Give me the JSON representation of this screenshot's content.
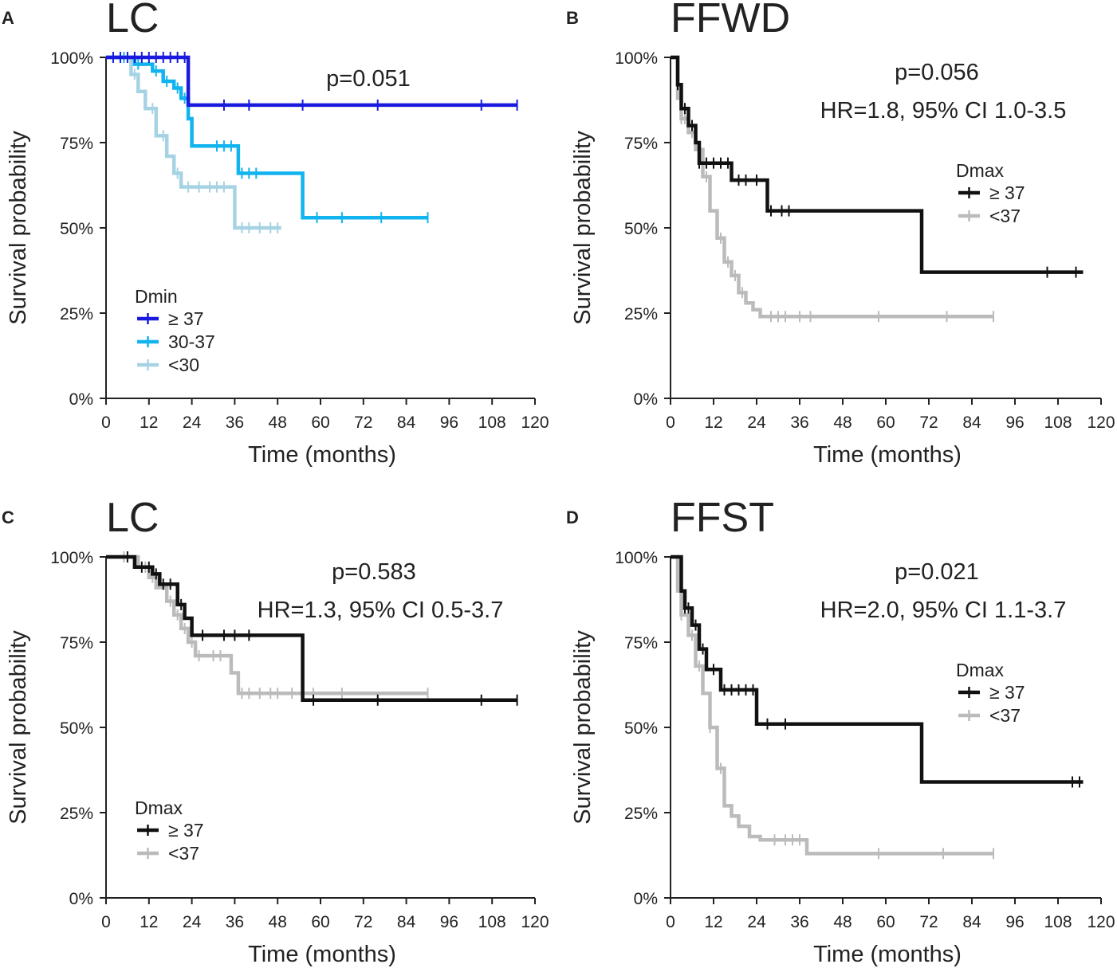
{
  "chart_data": [
    {
      "type": "line",
      "subtype": "kaplan-meier",
      "panel": "A",
      "title": "LC",
      "xlabel": "Time (months)",
      "ylabel": "Survival probability",
      "xlim": [
        0,
        120
      ],
      "ylim": [
        0,
        100
      ],
      "xticks": [
        "0",
        "12",
        "24",
        "36",
        "48",
        "60",
        "72",
        "84",
        "96",
        "108",
        "120"
      ],
      "yticks": [
        "0%",
        "25%",
        "50%",
        "75%",
        "100%"
      ],
      "annotations": [
        "p=0.051"
      ],
      "legend": {
        "title": "Dmin",
        "position": "bottom-left"
      },
      "series": [
        {
          "name": "≥ 37",
          "color": "#1a1adf",
          "x": [
            0,
            23,
            23,
            115
          ],
          "y": [
            100,
            100,
            86,
            86
          ],
          "censor_x": [
            2,
            4,
            6,
            8,
            10,
            12,
            14,
            16,
            18,
            20,
            22,
            33,
            40,
            55,
            76,
            105,
            115
          ]
        },
        {
          "name": "30-37",
          "color": "#12b4ef",
          "x": [
            0,
            8,
            8,
            13,
            13,
            16,
            16,
            19,
            19,
            21,
            21,
            23,
            23,
            24,
            24,
            37,
            37,
            55,
            55,
            90
          ],
          "y": [
            100,
            100,
            98,
            98,
            96,
            96,
            93,
            93,
            91,
            91,
            88,
            88,
            82,
            82,
            74,
            74,
            66,
            66,
            53,
            53
          ],
          "censor_x": [
            5,
            9,
            14,
            17,
            20,
            22,
            31,
            33,
            35,
            38,
            40,
            42,
            59,
            66,
            77,
            90
          ]
        },
        {
          "name": "<30",
          "color": "#a6d3e4",
          "x": [
            0,
            7,
            7,
            9,
            9,
            11,
            11,
            14,
            14,
            17,
            17,
            19,
            19,
            21,
            21,
            36,
            36,
            49
          ],
          "y": [
            100,
            100,
            95,
            95,
            90,
            90,
            85,
            85,
            77,
            77,
            71,
            71,
            66,
            66,
            62,
            62,
            50,
            50
          ],
          "censor_x": [
            8,
            13,
            16,
            20,
            23,
            26,
            29,
            31,
            33,
            38,
            40,
            43,
            46,
            48
          ]
        }
      ]
    },
    {
      "type": "line",
      "subtype": "kaplan-meier",
      "panel": "B",
      "title": "FFWD",
      "xlabel": "Time (months)",
      "ylabel": "Survival probability",
      "xlim": [
        0,
        120
      ],
      "ylim": [
        0,
        100
      ],
      "xticks": [
        "0",
        "12",
        "24",
        "36",
        "48",
        "60",
        "72",
        "84",
        "96",
        "108",
        "120"
      ],
      "yticks": [
        "0%",
        "25%",
        "50%",
        "75%",
        "100%"
      ],
      "annotations": [
        "p=0.056",
        "HR=1.8, 95% CI 1.0-3.5"
      ],
      "legend": {
        "title": "Dmax",
        "position": "right"
      },
      "series": [
        {
          "name": "≥ 37",
          "color": "#111111",
          "x": [
            0,
            2,
            2,
            3,
            3,
            5,
            5,
            7,
            7,
            8,
            8,
            17,
            17,
            27,
            27,
            70,
            70,
            115
          ],
          "y": [
            100,
            100,
            92,
            92,
            85,
            85,
            80,
            80,
            75,
            75,
            69,
            69,
            64,
            64,
            55,
            55,
            37,
            37
          ],
          "censor_x": [
            2,
            4,
            6,
            8,
            10,
            12,
            14,
            16,
            19,
            21,
            24,
            28,
            31,
            33,
            105,
            113
          ]
        },
        {
          "name": "<37",
          "color": "#bbbbbb",
          "x": [
            0,
            2,
            2,
            3,
            3,
            5,
            5,
            7,
            7,
            9,
            9,
            11,
            11,
            13,
            13,
            15,
            15,
            17,
            17,
            19,
            19,
            21,
            21,
            23,
            23,
            25,
            25,
            90
          ],
          "y": [
            100,
            100,
            88,
            88,
            82,
            82,
            78,
            78,
            73,
            73,
            65,
            65,
            55,
            55,
            47,
            47,
            40,
            40,
            36,
            36,
            31,
            31,
            28,
            28,
            26,
            26,
            24,
            24
          ],
          "censor_x": [
            3,
            4,
            6,
            10,
            14,
            16,
            18,
            20,
            28,
            30,
            32,
            36,
            39,
            58,
            77,
            90
          ]
        }
      ]
    },
    {
      "type": "line",
      "subtype": "kaplan-meier",
      "panel": "C",
      "title": "LC",
      "xlabel": "Time (months)",
      "ylabel": "Survival probability",
      "xlim": [
        0,
        120
      ],
      "ylim": [
        0,
        100
      ],
      "xticks": [
        "0",
        "12",
        "24",
        "36",
        "48",
        "60",
        "72",
        "84",
        "96",
        "108",
        "120"
      ],
      "yticks": [
        "0%",
        "25%",
        "50%",
        "75%",
        "100%"
      ],
      "annotations": [
        "p=0.583",
        "HR=1.3, 95% CI 0.5-3.7"
      ],
      "legend": {
        "title": "Dmax",
        "position": "bottom-left"
      },
      "series": [
        {
          "name": "≥ 37",
          "color": "#111111",
          "x": [
            0,
            8,
            8,
            13,
            13,
            15,
            15,
            20,
            20,
            22,
            22,
            24,
            24,
            55,
            55,
            115
          ],
          "y": [
            100,
            100,
            97,
            97,
            95,
            95,
            92,
            92,
            86,
            86,
            82,
            82,
            77,
            77,
            58,
            58
          ],
          "censor_x": [
            6,
            10,
            12,
            14,
            16,
            18,
            21,
            27,
            33,
            36,
            40,
            58,
            76,
            105,
            115
          ]
        },
        {
          "name": "<37",
          "color": "#bbbbbb",
          "x": [
            0,
            9,
            9,
            12,
            12,
            14,
            14,
            17,
            17,
            19,
            19,
            21,
            21,
            23,
            23,
            25,
            25,
            35,
            35,
            37,
            37,
            90
          ],
          "y": [
            100,
            100,
            97,
            97,
            94,
            94,
            91,
            91,
            87,
            87,
            83,
            83,
            79,
            79,
            75,
            75,
            71,
            71,
            66,
            66,
            60,
            60
          ],
          "censor_x": [
            5,
            11,
            13,
            18,
            20,
            22,
            24,
            26,
            30,
            32,
            38,
            40,
            43,
            46,
            48,
            52,
            58,
            66,
            90
          ]
        }
      ]
    },
    {
      "type": "line",
      "subtype": "kaplan-meier",
      "panel": "D",
      "title": "FFST",
      "xlabel": "Time (months)",
      "ylabel": "Survival probability",
      "xlim": [
        0,
        120
      ],
      "ylim": [
        0,
        100
      ],
      "xticks": [
        "0",
        "12",
        "24",
        "36",
        "48",
        "60",
        "72",
        "84",
        "96",
        "108",
        "120"
      ],
      "yticks": [
        "0%",
        "25%",
        "50%",
        "75%",
        "100%"
      ],
      "annotations": [
        "p=0.021",
        "HR=2.0, 95% CI 1.1-3.7"
      ],
      "legend": {
        "title": "Dmax",
        "position": "right"
      },
      "series": [
        {
          "name": "≥ 37",
          "color": "#111111",
          "x": [
            0,
            3,
            3,
            4,
            4,
            6,
            6,
            8,
            8,
            10,
            10,
            14,
            14,
            24,
            24,
            70,
            70,
            115
          ],
          "y": [
            100,
            100,
            90,
            90,
            85,
            85,
            80,
            80,
            73,
            73,
            67,
            67,
            61,
            61,
            51,
            51,
            34,
            34
          ],
          "censor_x": [
            4,
            5,
            7,
            9,
            12,
            15,
            17,
            19,
            21,
            23,
            27,
            32,
            112,
            114
          ]
        },
        {
          "name": "<37",
          "color": "#bbbbbb",
          "x": [
            0,
            2,
            2,
            3,
            3,
            5,
            5,
            7,
            7,
            9,
            9,
            11,
            11,
            13,
            13,
            15,
            15,
            17,
            17,
            19,
            19,
            22,
            22,
            25,
            25,
            38,
            38,
            90
          ],
          "y": [
            100,
            100,
            90,
            90,
            83,
            83,
            77,
            77,
            68,
            68,
            60,
            60,
            50,
            50,
            38,
            38,
            27,
            27,
            24,
            24,
            21,
            21,
            18,
            18,
            17,
            17,
            13,
            13
          ],
          "censor_x": [
            3,
            6,
            8,
            11,
            14,
            29,
            32,
            34,
            36,
            58,
            76,
            90
          ]
        }
      ]
    }
  ]
}
